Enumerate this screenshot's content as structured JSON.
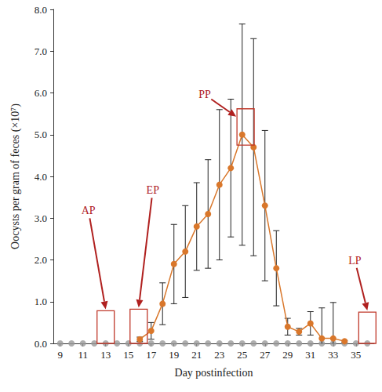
{
  "chart_data": {
    "type": "line",
    "x_label": "Day postinfection",
    "y_label": "Oocysts per gram of feces (×10⁷)",
    "x": [
      9,
      10,
      11,
      12,
      13,
      14,
      15,
      16,
      17,
      18,
      19,
      20,
      21,
      22,
      23,
      24,
      25,
      26,
      27,
      28,
      29,
      30,
      31,
      32,
      33,
      34,
      35,
      36
    ],
    "series": [
      {
        "type": "scatter",
        "color": "#9a9a9a",
        "marker": "circle",
        "values": [
          0,
          0,
          0,
          0,
          0,
          0,
          0,
          0,
          0,
          0,
          0,
          0,
          0,
          0,
          0,
          0,
          0,
          0,
          0,
          0,
          0,
          0,
          0,
          0,
          0,
          0,
          0,
          0
        ]
      },
      {
        "type": "line",
        "color": "#d9772b",
        "marker": "circle",
        "values": [
          null,
          null,
          null,
          null,
          null,
          null,
          null,
          0.1,
          0.3,
          0.95,
          1.9,
          2.2,
          2.8,
          3.1,
          3.8,
          4.2,
          5.0,
          4.7,
          3.3,
          1.8,
          0.4,
          0.28,
          0.48,
          0.12,
          0.12,
          0.05,
          null,
          null
        ],
        "errors": [
          null,
          null,
          null,
          null,
          null,
          null,
          null,
          0.05,
          0.2,
          0.5,
          0.95,
          1.1,
          1.05,
          1.3,
          1.8,
          1.65,
          2.65,
          2.6,
          1.8,
          0.9,
          0.2,
          0.08,
          0.28,
          0.73,
          0.86,
          0.02,
          null,
          null
        ]
      }
    ],
    "xlim": [
      8.4,
      36.6
    ],
    "xticks": [
      9,
      11,
      13,
      15,
      17,
      19,
      21,
      23,
      25,
      27,
      29,
      31,
      33,
      35
    ],
    "ylim": [
      0,
      8
    ],
    "yticks": [
      {
        "value": 0,
        "label": "0.0"
      },
      {
        "value": 1,
        "label": "1.0"
      },
      {
        "value": 2,
        "label": "2.0"
      },
      {
        "value": 3,
        "label": "3.0"
      },
      {
        "value": 4,
        "label": "4.0"
      },
      {
        "value": 5,
        "label": "5.0"
      },
      {
        "value": 6,
        "label": "6.0"
      },
      {
        "value": 7,
        "label": "7.0"
      },
      {
        "value": 8,
        "label": "8.0"
      }
    ],
    "grid": false,
    "annotations": [
      {
        "text": "AP",
        "x": 13,
        "box": [
          0,
          0.78
        ]
      },
      {
        "text": "EP",
        "x": 15.9,
        "box": [
          0,
          0.82
        ]
      },
      {
        "text": "PP",
        "x": 25.3,
        "box": [
          4.75,
          5.62
        ]
      },
      {
        "text": "LP",
        "x": 36,
        "box": [
          0,
          0.75
        ]
      }
    ]
  }
}
